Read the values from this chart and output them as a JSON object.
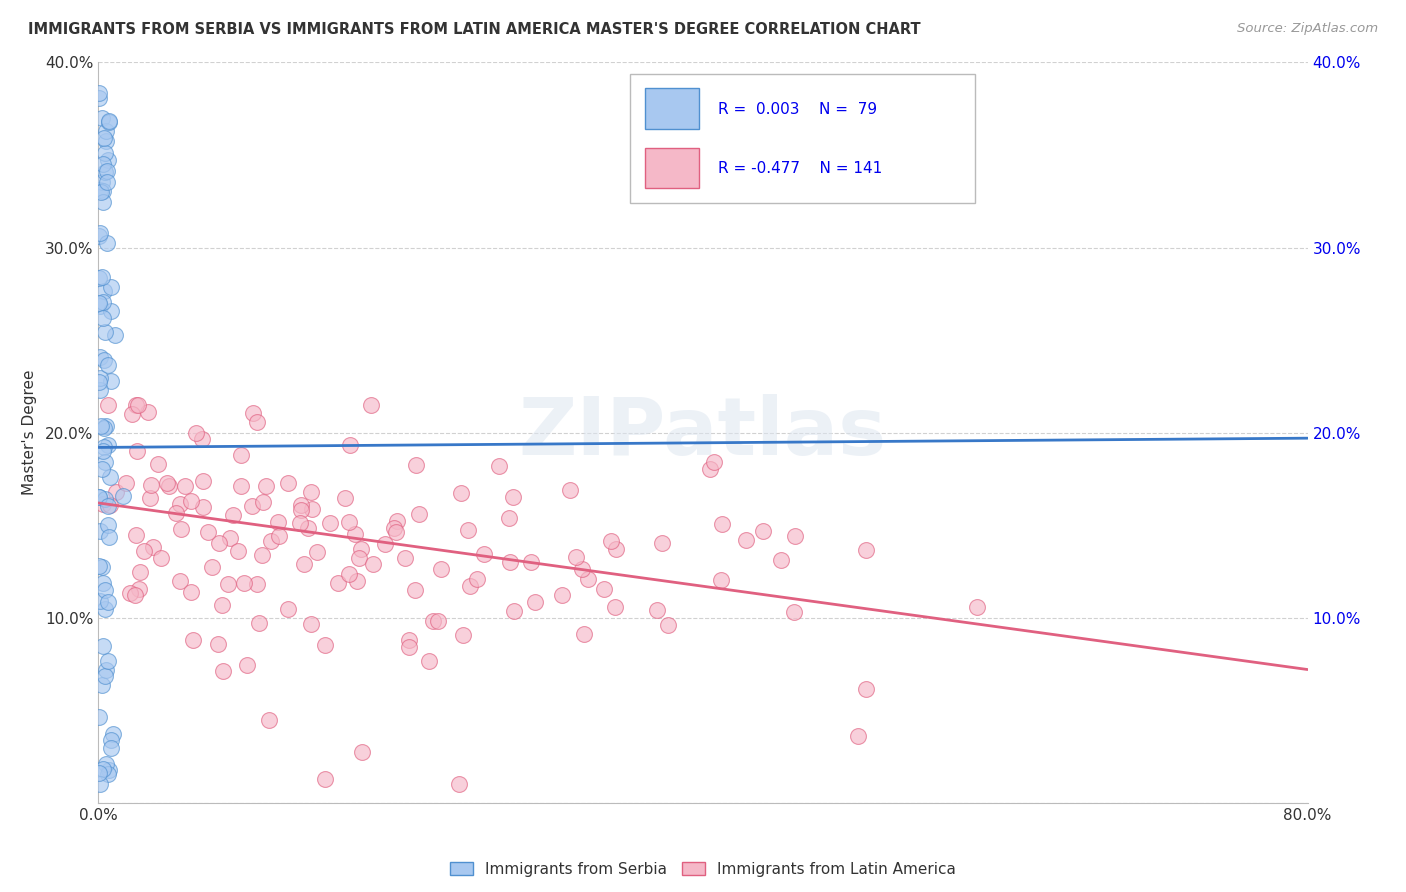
{
  "title": "IMMIGRANTS FROM SERBIA VS IMMIGRANTS FROM LATIN AMERICA MASTER'S DEGREE CORRELATION CHART",
  "source": "Source: ZipAtlas.com",
  "ylabel": "Master's Degree",
  "xlim": [
    0.0,
    0.8
  ],
  "ylim": [
    0.0,
    0.4
  ],
  "xticks": [
    0.0,
    0.2,
    0.4,
    0.6,
    0.8
  ],
  "xtick_labels": [
    "0.0%",
    "",
    "",
    "",
    "80.0%"
  ],
  "yticks": [
    0.0,
    0.1,
    0.2,
    0.3,
    0.4
  ],
  "ytick_labels_left": [
    "",
    "10.0%",
    "20.0%",
    "30.0%",
    "40.0%"
  ],
  "ytick_labels_right": [
    "",
    "10.0%",
    "20.0%",
    "30.0%",
    "40.0%"
  ],
  "serbia_R": 0.003,
  "serbia_N": 79,
  "latin_R": -0.477,
  "latin_N": 141,
  "serbia_color": "#a8c8f0",
  "latin_color": "#f5b8c8",
  "serbia_edge_color": "#5090d0",
  "latin_edge_color": "#e06080",
  "serbia_trend_color": "#3878c8",
  "latin_trend_color": "#e06080",
  "background_color": "#ffffff",
  "grid_color": "#cccccc",
  "text_color": "#333333",
  "legend_text_color": "#0000ee",
  "watermark_text": "ZIPatlas",
  "serbia_trend_x": [
    0.0,
    0.8
  ],
  "serbia_trend_y": [
    0.192,
    0.197
  ],
  "latin_trend_x": [
    0.0,
    0.8
  ],
  "latin_trend_y": [
    0.162,
    0.072
  ]
}
